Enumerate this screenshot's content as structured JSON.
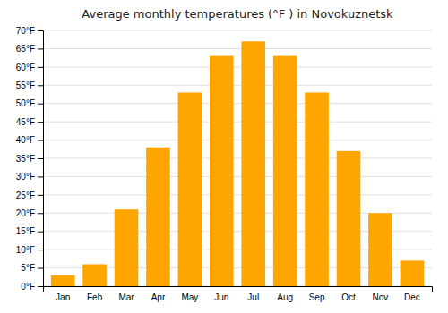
{
  "chart_data": {
    "type": "bar",
    "title": "Average monthly temperatures (°F ) in Novokuznetsk",
    "categories": [
      "Jan",
      "Feb",
      "Mar",
      "Apr",
      "May",
      "Jun",
      "Jul",
      "Aug",
      "Sep",
      "Oct",
      "Nov",
      "Dec"
    ],
    "values": [
      3,
      6,
      21,
      38,
      53,
      63,
      67,
      63,
      53,
      37,
      20,
      7
    ],
    "color": "#FFA500",
    "ylim": [
      0,
      70
    ],
    "yticks": [
      {
        "value": 0,
        "label": "0°F"
      },
      {
        "value": 5,
        "label": "5°F"
      },
      {
        "value": 10,
        "label": "10°F"
      },
      {
        "value": 15,
        "label": "15°F"
      },
      {
        "value": 20,
        "label": "20°F"
      },
      {
        "value": 25,
        "label": "25°F"
      },
      {
        "value": 30,
        "label": "30°F"
      },
      {
        "value": 35,
        "label": "35°F"
      },
      {
        "value": 40,
        "label": "40°F"
      },
      {
        "value": 45,
        "label": "45°F"
      },
      {
        "value": 50,
        "label": "50°F"
      },
      {
        "value": 55,
        "label": "55°F"
      },
      {
        "value": 60,
        "label": "60°F"
      },
      {
        "value": 65,
        "label": "65°F"
      },
      {
        "value": 70,
        "label": "70°F"
      }
    ],
    "grid": true
  }
}
